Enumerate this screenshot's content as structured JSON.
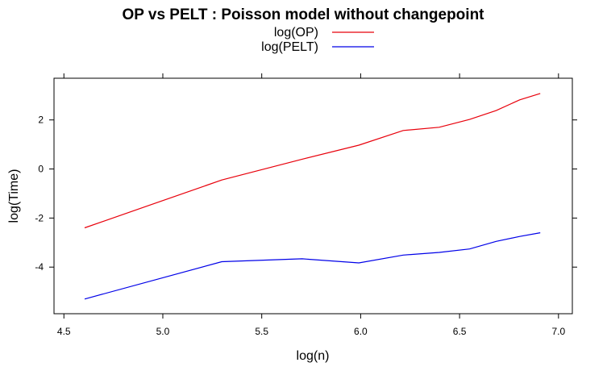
{
  "chart_data": {
    "type": "line",
    "title": "OP vs PELT : Poisson model without changepoint",
    "xlabel": "log(n)",
    "ylabel": "log(Time)",
    "xlim": [
      4.45,
      7.07
    ],
    "ylim": [
      -5.9,
      3.7
    ],
    "x_ticks": [
      "4.5",
      "5.0",
      "5.5",
      "6.0",
      "6.5",
      "7.0"
    ],
    "y_ticks": [
      "-4",
      "-2",
      "0",
      "2"
    ],
    "legend_position": "top-center",
    "series": [
      {
        "name": "log(OP)",
        "color": "#e8000b",
        "x": [
          4.605,
          5.298,
          5.704,
          5.991,
          6.215,
          6.397,
          6.551,
          6.685,
          6.804,
          6.908
        ],
        "y": [
          -2.4,
          -0.45,
          0.4,
          0.97,
          1.57,
          1.7,
          2.02,
          2.38,
          2.82,
          3.08
        ]
      },
      {
        "name": "log(PELT)",
        "color": "#0000e8",
        "x": [
          4.605,
          5.298,
          5.704,
          5.991,
          6.215,
          6.397,
          6.551,
          6.685,
          6.804,
          6.908
        ],
        "y": [
          -5.3,
          -3.78,
          -3.66,
          -3.83,
          -3.51,
          -3.4,
          -3.26,
          -2.95,
          -2.75,
          -2.6
        ]
      }
    ]
  }
}
